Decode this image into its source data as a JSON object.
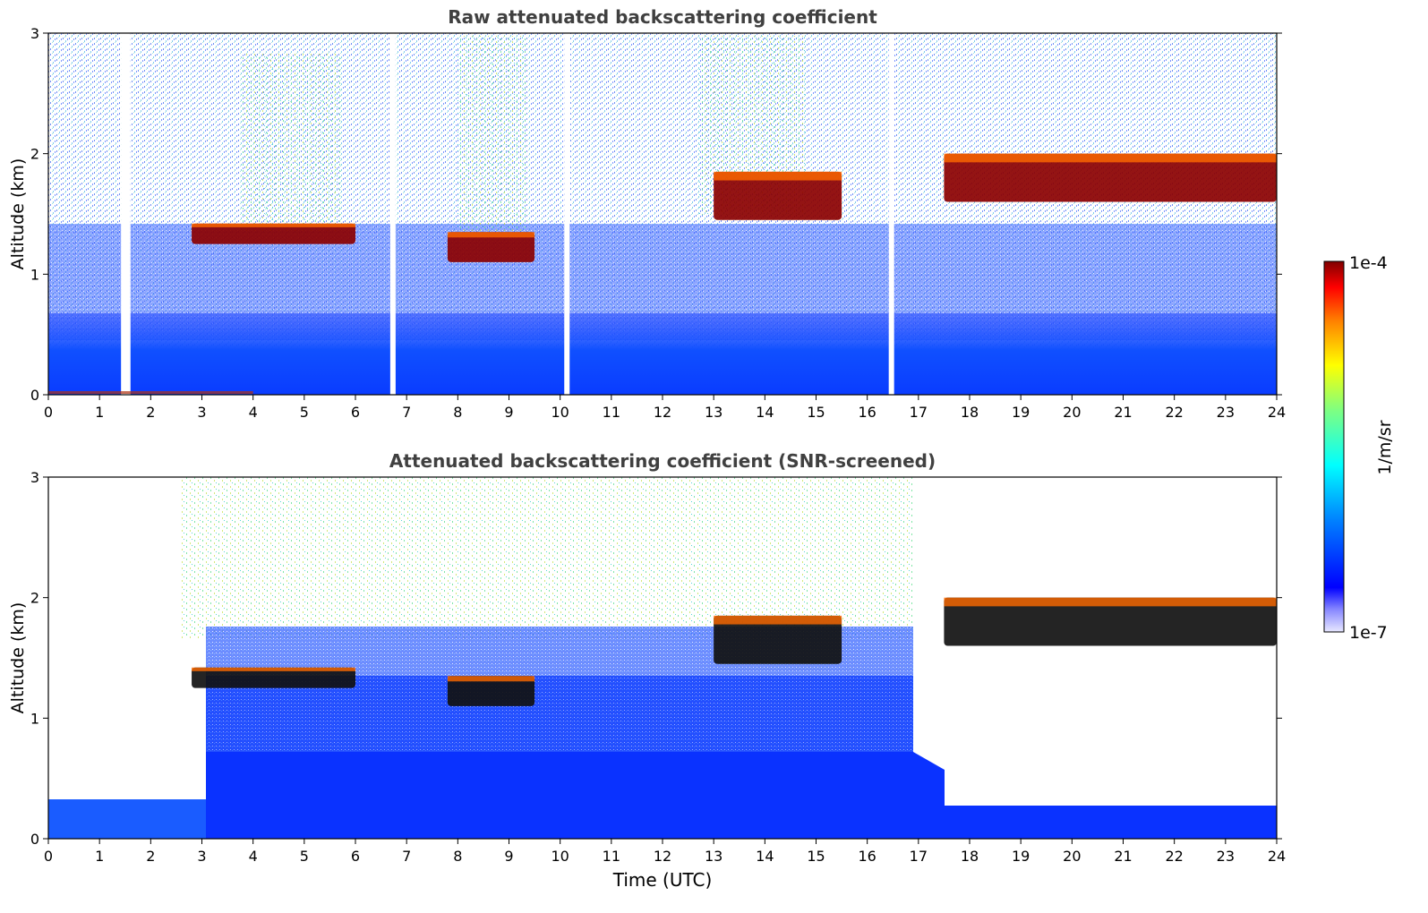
{
  "chart_data": [
    {
      "type": "heatmap",
      "title": "Raw attenuated backscattering coefficient",
      "xlabel": "",
      "ylabel": "Altitude (km)",
      "xlim": [
        0,
        24
      ],
      "ylim": [
        0,
        3
      ],
      "xticks": [
        "0",
        "1",
        "2",
        "3",
        "4",
        "5",
        "6",
        "7",
        "8",
        "9",
        "10",
        "11",
        "12",
        "13",
        "14",
        "15",
        "16",
        "17",
        "18",
        "19",
        "20",
        "21",
        "22",
        "23",
        "24"
      ],
      "yticks": [
        "0",
        "1",
        "2",
        "3"
      ],
      "data_gaps_hours": [
        1.42,
        1.5,
        6.68,
        10.08,
        16.42
      ],
      "features": [
        {
          "kind": "near-surface backscatter layer",
          "x_range": [
            0,
            24
          ],
          "altitude_km": [
            0,
            0.45
          ]
        },
        {
          "kind": "cloud layer",
          "x_range": [
            2.8,
            6.0
          ],
          "altitude_km": [
            1.25,
            1.42
          ]
        },
        {
          "kind": "cloud layer",
          "x_range": [
            7.8,
            9.5
          ],
          "altitude_km": [
            1.1,
            1.35
          ]
        },
        {
          "kind": "cloud layer",
          "x_range": [
            13.0,
            15.5
          ],
          "altitude_km": [
            1.45,
            1.85
          ]
        },
        {
          "kind": "cloud layer",
          "x_range": [
            17.5,
            24.0
          ],
          "altitude_km": [
            1.6,
            2.0
          ]
        }
      ]
    },
    {
      "type": "heatmap",
      "title": "Attenuated backscattering coefficient (SNR-screened)",
      "xlabel": "Time (UTC)",
      "ylabel": "Altitude (km)",
      "xlim": [
        0,
        24
      ],
      "ylim": [
        0,
        3
      ],
      "xticks": [
        "0",
        "1",
        "2",
        "3",
        "4",
        "5",
        "6",
        "7",
        "8",
        "9",
        "10",
        "11",
        "12",
        "13",
        "14",
        "15",
        "16",
        "17",
        "18",
        "19",
        "20",
        "21",
        "22",
        "23",
        "24"
      ],
      "yticks": [
        "0",
        "1",
        "2",
        "3"
      ],
      "features": [
        {
          "kind": "screened boundary layer",
          "x_range": [
            0,
            2.6
          ],
          "altitude_km": [
            0,
            0.33
          ]
        },
        {
          "kind": "screened boundary layer",
          "x_range": [
            2.6,
            17.0
          ],
          "altitude_km": [
            0,
            1.35
          ]
        },
        {
          "kind": "screened boundary layer",
          "x_range": [
            17.5,
            24.0
          ],
          "altitude_km": [
            0,
            0.28
          ]
        },
        {
          "kind": "cloud layer",
          "x_range": [
            2.8,
            6.0
          ],
          "altitude_km": [
            1.25,
            1.42
          ]
        },
        {
          "kind": "cloud layer",
          "x_range": [
            7.8,
            9.5
          ],
          "altitude_km": [
            1.1,
            1.35
          ]
        },
        {
          "kind": "cloud layer",
          "x_range": [
            13.0,
            15.5
          ],
          "altitude_km": [
            1.45,
            1.85
          ]
        },
        {
          "kind": "cloud layer",
          "x_range": [
            17.5,
            24.0
          ],
          "altitude_km": [
            1.6,
            2.0
          ]
        }
      ]
    }
  ],
  "colorbar": {
    "label": "1/m/sr",
    "max_label": "1e-4",
    "min_label": "1e-7",
    "scale": "log",
    "colormap": "jet",
    "colors": [
      "#e8e8ff",
      "#0000ff",
      "#0080ff",
      "#00ffff",
      "#80ff80",
      "#ffff00",
      "#ff8000",
      "#ff0000",
      "#800000"
    ]
  }
}
